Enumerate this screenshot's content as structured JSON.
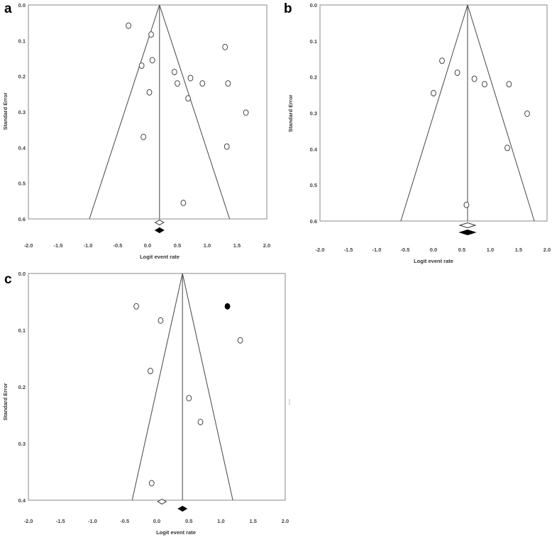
{
  "chart_data": [
    {
      "panel": "a",
      "type": "scatter",
      "xlabel": "Logit event rate",
      "ylabel": "Standard Error",
      "xlim": [
        -2.0,
        2.0
      ],
      "ylim": [
        0.0,
        0.6
      ],
      "y_inverted": true,
      "xticks": [
        "-2.0",
        "-1.5",
        "-1.0",
        "-0.5",
        "0.0",
        "0.5",
        "1.0",
        "1.5",
        "2.0"
      ],
      "yticks": [
        "0.0",
        "0.1",
        "0.2",
        "0.3",
        "0.4",
        "0.5",
        "0.6"
      ],
      "funnel_center": 0.2,
      "points_open": [
        [
          -0.32,
          0.058
        ],
        [
          0.06,
          0.083
        ],
        [
          -0.1,
          0.17
        ],
        [
          0.08,
          0.155
        ],
        [
          0.03,
          0.245
        ],
        [
          0.45,
          0.188
        ],
        [
          0.5,
          0.22
        ],
        [
          0.72,
          0.205
        ],
        [
          0.92,
          0.22
        ],
        [
          1.3,
          0.118
        ],
        [
          1.35,
          0.22
        ],
        [
          0.68,
          0.262
        ],
        [
          1.65,
          0.302
        ],
        [
          -0.07,
          0.37
        ],
        [
          1.33,
          0.397
        ],
        [
          0.6,
          0.555
        ]
      ],
      "points_filled": [],
      "summary_open": 0.2,
      "summary_filled": 0.2
    },
    {
      "panel": "b",
      "type": "scatter",
      "xlabel": "Logit event rate",
      "ylabel": "Standard Error",
      "xlim": [
        -2.0,
        2.0
      ],
      "ylim": [
        0.0,
        0.6
      ],
      "y_inverted": true,
      "xticks": [
        "-2.0",
        "-1.5",
        "-1.0",
        "-0.5",
        "0.0",
        "0.5",
        "1.0",
        "1.5",
        "2.0"
      ],
      "yticks": [
        "0.0",
        "0.1",
        "0.2",
        "0.3",
        "0.4",
        "0.5",
        "0.6"
      ],
      "funnel_center": 0.6,
      "points_open": [
        [
          0.15,
          0.155
        ],
        [
          0.42,
          0.188
        ],
        [
          0.72,
          0.205
        ],
        [
          0.9,
          0.22
        ],
        [
          1.33,
          0.22
        ],
        [
          0.0,
          0.245
        ],
        [
          1.65,
          0.302
        ],
        [
          1.3,
          0.397
        ],
        [
          0.58,
          0.555
        ]
      ],
      "points_filled": [],
      "summary_open": 0.6,
      "summary_filled": 0.6
    },
    {
      "panel": "c",
      "type": "scatter",
      "xlabel": "Logit event rate",
      "ylabel": "Standard Error",
      "xlim": [
        -2.0,
        2.0
      ],
      "ylim": [
        0.0,
        0.4
      ],
      "y_inverted": true,
      "xticks": [
        "-2.0",
        "-1.5",
        "-1.0",
        "-0.5",
        "0.0",
        "0.5",
        "1.0",
        "1.5",
        "2.0"
      ],
      "yticks": [
        "0.0",
        "0.1",
        "0.2",
        "0.3",
        "0.4"
      ],
      "funnel_center": 0.4,
      "points_open": [
        [
          -0.32,
          0.058
        ],
        [
          0.06,
          0.083
        ],
        [
          1.3,
          0.118
        ],
        [
          -0.1,
          0.172
        ],
        [
          0.5,
          0.22
        ],
        [
          0.68,
          0.262
        ],
        [
          -0.08,
          0.37
        ]
      ],
      "points_filled": [
        [
          1.1,
          0.058
        ]
      ],
      "summary_open": 0.08,
      "summary_filled": 0.4
    }
  ]
}
